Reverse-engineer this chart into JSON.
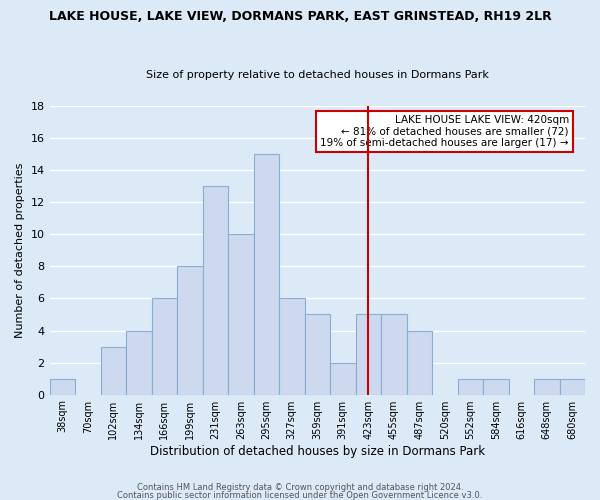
{
  "title": "LAKE HOUSE, LAKE VIEW, DORMANS PARK, EAST GRINSTEAD, RH19 2LR",
  "subtitle": "Size of property relative to detached houses in Dormans Park",
  "xlabel": "Distribution of detached houses by size in Dormans Park",
  "ylabel": "Number of detached properties",
  "footer_line1": "Contains HM Land Registry data © Crown copyright and database right 2024.",
  "footer_line2": "Contains public sector information licensed under the Open Government Licence v3.0.",
  "bin_labels": [
    "38sqm",
    "70sqm",
    "102sqm",
    "134sqm",
    "166sqm",
    "199sqm",
    "231sqm",
    "263sqm",
    "295sqm",
    "327sqm",
    "359sqm",
    "391sqm",
    "423sqm",
    "455sqm",
    "487sqm",
    "520sqm",
    "552sqm",
    "584sqm",
    "616sqm",
    "648sqm",
    "680sqm"
  ],
  "bar_heights": [
    1,
    0,
    3,
    4,
    6,
    8,
    13,
    10,
    15,
    6,
    5,
    2,
    5,
    5,
    4,
    0,
    1,
    1,
    0,
    1,
    1
  ],
  "bar_color": "#ccd9ee",
  "bar_edge_color": "#8aadd4",
  "ylim": [
    0,
    18
  ],
  "yticks": [
    0,
    2,
    4,
    6,
    8,
    10,
    12,
    14,
    16,
    18
  ],
  "ref_line_label": "423sqm",
  "ref_line_color": "#cc0000",
  "annotation_title": "LAKE HOUSE LAKE VIEW: 420sqm",
  "annotation_line1": "← 81% of detached houses are smaller (72)",
  "annotation_line2": "19% of semi-detached houses are larger (17) →",
  "annotation_box_color": "#ffffff",
  "annotation_box_edge": "#cc0000",
  "bg_color": "#dce9f7",
  "plot_bg_color": "#dce9f7",
  "grid_color": "#ffffff"
}
